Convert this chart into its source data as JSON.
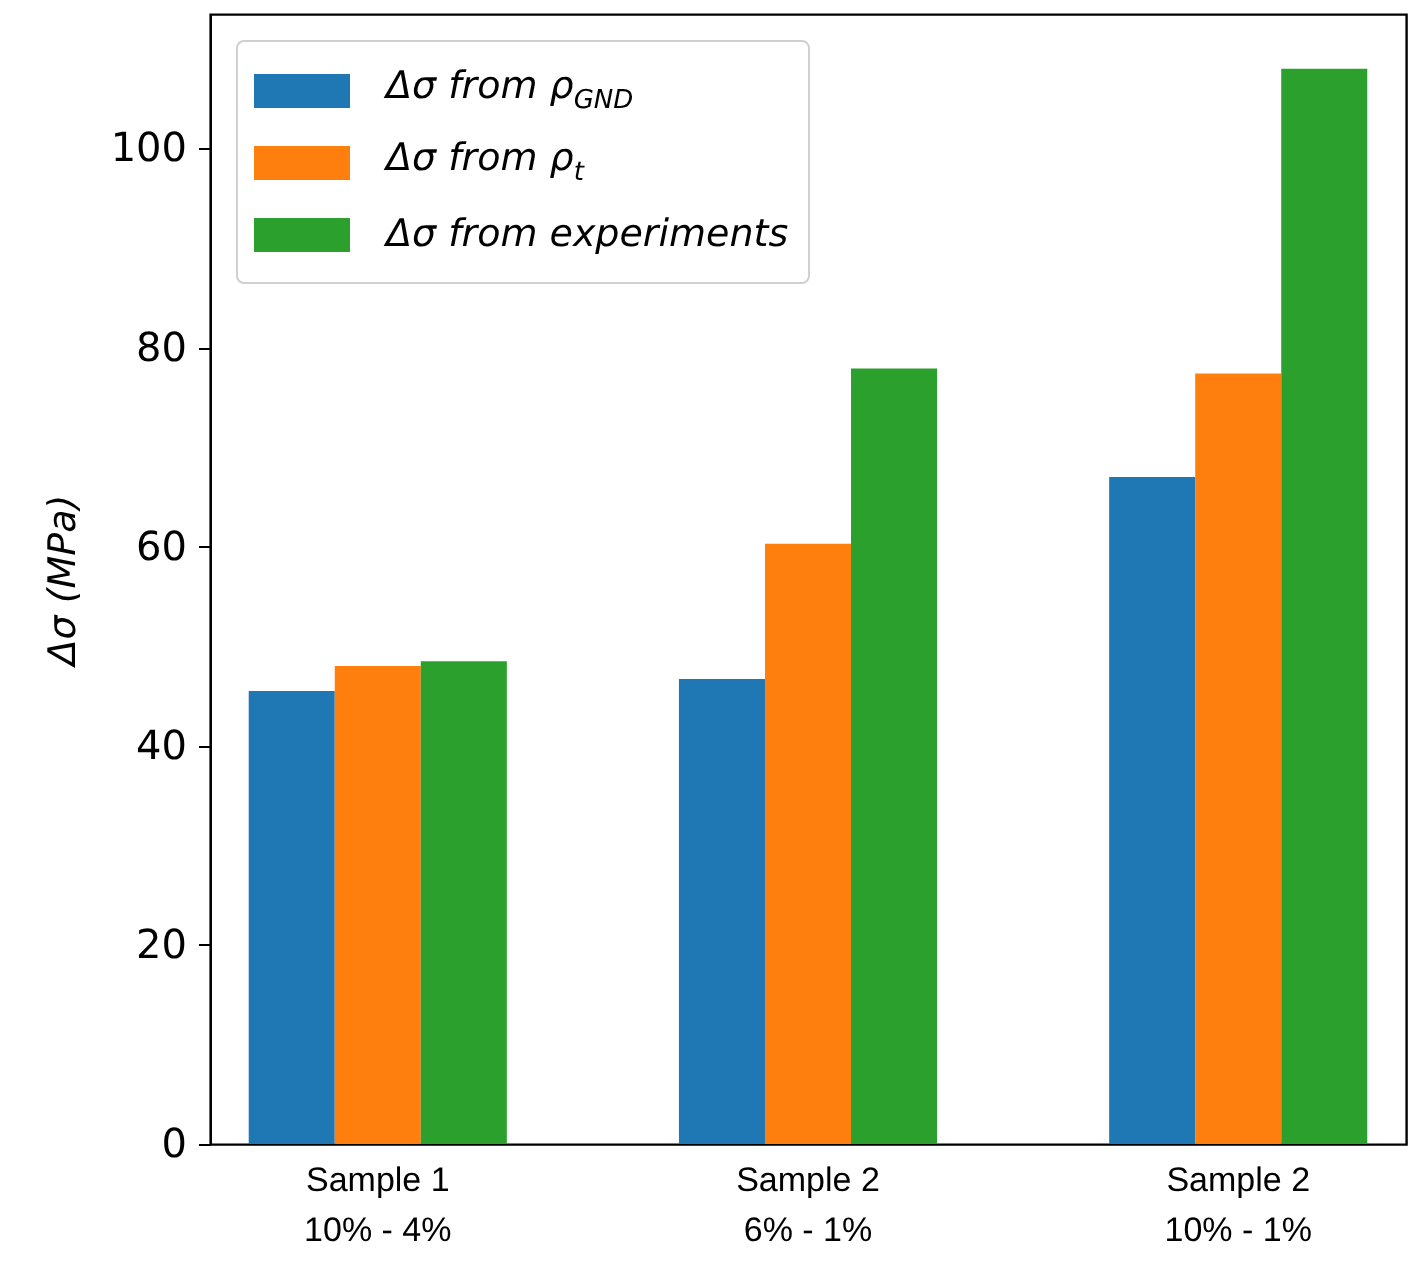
{
  "chart_data": {
    "type": "bar",
    "ylabel": "Δσ (MPa)",
    "categories": [
      "Sample 1\n10% - 4%",
      "Sample 2\n6% - 1%",
      "Sample 2\n10% - 1%"
    ],
    "series": [
      {
        "name": "Δσ from ρ$_{GND}$",
        "color": "#1f77b4",
        "values": [
          45.5,
          46.7,
          67.0
        ]
      },
      {
        "name": "Δσ from ρ$_{t}$",
        "color": "#ff7f0e",
        "values": [
          48.0,
          60.3,
          77.4
        ]
      },
      {
        "name": "Δσ from experiments",
        "color": "#2ca02c",
        "values": [
          48.5,
          77.9,
          108.0
        ]
      }
    ],
    "ylim": [
      0,
      113.5
    ],
    "yticks": [
      0,
      20,
      40,
      60,
      80,
      100
    ],
    "legend": "top left"
  }
}
